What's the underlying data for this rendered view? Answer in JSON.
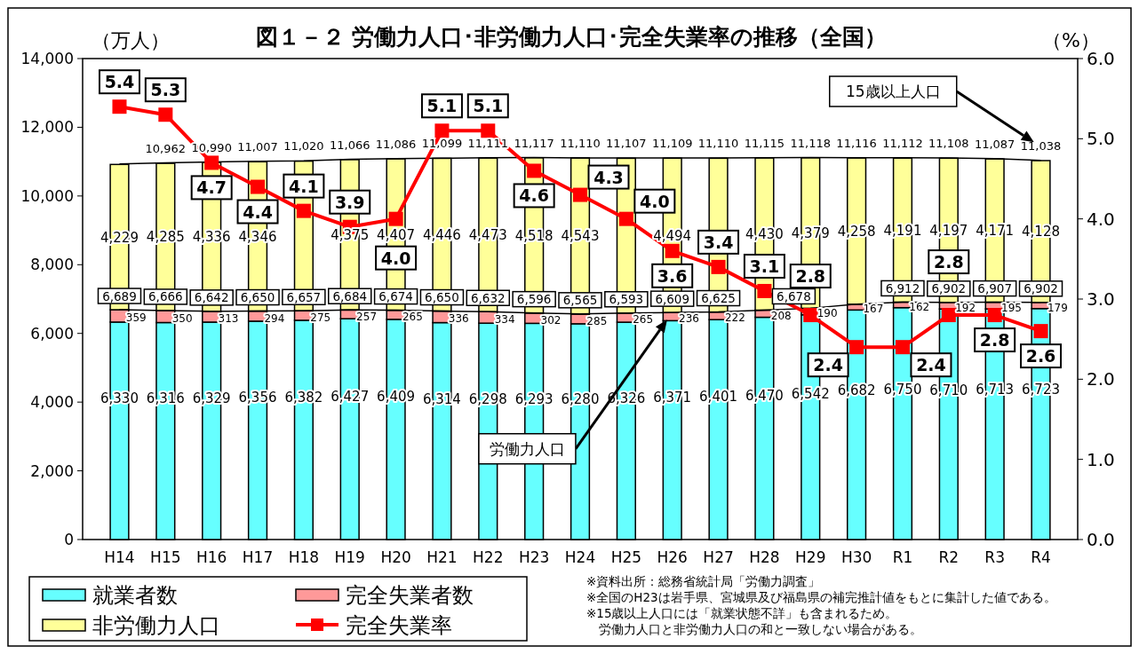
{
  "chart_data": {
    "type": "bar",
    "title": "図１－２ 労働力人口･非労働力人口･完全失業率の推移（全国）",
    "ylabel": "（万人）",
    "y2label": "（%）",
    "categories": [
      "H14",
      "H15",
      "H16",
      "H17",
      "H18",
      "H19",
      "H20",
      "H21",
      "H22",
      "H23",
      "H24",
      "H25",
      "H26",
      "H27",
      "H28",
      "H29",
      "H30",
      "R1",
      "R2",
      "R3",
      "R4"
    ],
    "stacked": true,
    "series": [
      {
        "name": "就業者数",
        "color": "#66ffff",
        "values": [
          6330,
          6316,
          6329,
          6356,
          6382,
          6427,
          6409,
          6314,
          6298,
          6293,
          6280,
          6326,
          6371,
          6401,
          6470,
          6542,
          6682,
          6750,
          6710,
          6713,
          6723
        ],
        "value_labels": [
          "6,330",
          "6,316",
          "6,329",
          "6,356",
          "6,382",
          "6,427",
          "6,409",
          "6,314",
          "6,298",
          "6,293",
          "6,280",
          "6,326",
          "6,371",
          "6,401",
          "6,470",
          "6,542",
          "6,682",
          "6,750",
          "6,710",
          "6,713",
          "6,723"
        ]
      },
      {
        "name": "完全失業者数",
        "color": "#ff9999",
        "values": [
          359,
          350,
          313,
          294,
          275,
          257,
          265,
          336,
          334,
          302,
          285,
          265,
          236,
          222,
          208,
          190,
          167,
          162,
          192,
          195,
          179
        ],
        "value_labels": [
          "359",
          "350",
          "313",
          "294",
          "275",
          "257",
          "265",
          "336",
          "334",
          "302",
          "285",
          "265",
          "236",
          "222",
          "208",
          "190",
          "167",
          "162",
          "192",
          "195",
          "179"
        ]
      },
      {
        "name": "非労働力人口",
        "color": "#ffff99",
        "values": [
          4229,
          4285,
          4336,
          4346,
          4357,
          4375,
          4407,
          4446,
          4473,
          4518,
          4543,
          4506,
          4494,
          4475,
          4430,
          4379,
          4258,
          4191,
          4197,
          4171,
          4128
        ],
        "value_labels": [
          "4,229",
          "4,285",
          "4,336",
          "4,346",
          null,
          "4,375",
          "4,407",
          "4,446",
          "4,473",
          "4,518",
          "4,543",
          null,
          "4,494",
          null,
          "4,430",
          "4,379",
          "4,258",
          "4,191",
          "4,197",
          "4,171",
          "4,128"
        ]
      },
      {
        "name": "労働力人口",
        "type": "line",
        "color": "#000000",
        "marker": "none",
        "values": [
          6689,
          6666,
          6642,
          6650,
          6657,
          6684,
          6674,
          6650,
          6632,
          6596,
          6565,
          6593,
          6609,
          6625,
          6678,
          6732,
          6849,
          6912,
          6902,
          6907,
          6902
        ],
        "value_labels": [
          "6,689",
          "6,666",
          "6,642",
          "6,650",
          "6,657",
          "6,684",
          "6,674",
          "6,650",
          "6,632",
          "6,596",
          "6,565",
          "6,593",
          "6,609",
          "6,625",
          "6,678",
          null,
          null,
          "6,912",
          "6,902",
          "6,907",
          "6,902"
        ]
      },
      {
        "name": "15歳以上人口",
        "type": "line",
        "color": "#000000",
        "marker": "none",
        "values": [
          10931,
          10962,
          10990,
          11007,
          11020,
          11066,
          11086,
          11099,
          11111,
          11117,
          11110,
          11107,
          11109,
          11110,
          11115,
          11118,
          11116,
          11112,
          11108,
          11087,
          11038
        ],
        "value_labels": [
          null,
          "10,962",
          "10,990",
          "11,007",
          "11,020",
          "11,066",
          "11,086",
          "11,099",
          "11,111",
          "11,117",
          "11,110",
          "11,107",
          "11,109",
          "11,110",
          "11,115",
          "11,118",
          "11,116",
          "11,112",
          "11,108",
          "11,087",
          "11,038"
        ]
      },
      {
        "name": "完全失業率",
        "type": "line",
        "color": "#ff0000",
        "marker": "square",
        "axis": "y2",
        "values": [
          5.4,
          5.3,
          4.7,
          4.4,
          4.1,
          3.9,
          4.0,
          5.1,
          5.1,
          4.6,
          4.3,
          4.0,
          3.6,
          3.4,
          3.1,
          2.8,
          2.4,
          2.4,
          2.8,
          2.8,
          2.6
        ],
        "value_labels": [
          "5.4",
          "5.3",
          "4.7",
          "4.4",
          "4.1",
          "3.9",
          "4.0",
          "5.1",
          "5.1",
          "4.6",
          "4.3",
          "4.0",
          "3.6",
          "3.4",
          "3.1",
          "2.8",
          "2.4",
          "2.4",
          "2.8",
          "2.8",
          "2.6"
        ]
      }
    ],
    "ylim": [
      0,
      14000
    ],
    "yticks": [
      0,
      {
        "value": 2000,
        "label": "2,000"
      },
      {
        "value": 4000,
        "label": "4,000"
      },
      {
        "value": 6000,
        "label": "6,000"
      },
      {
        "value": 8000,
        "label": "8,000"
      },
      {
        "value": 10000,
        "label": "10,000"
      },
      {
        "value": 12000,
        "label": "12,000"
      },
      {
        "value": 14000,
        "label": "14,000"
      }
    ],
    "y2lim": [
      0,
      6
    ],
    "y2ticks": [
      {
        "value": 0,
        "label": "0.0"
      },
      {
        "value": 1,
        "label": "1.0"
      },
      {
        "value": 2,
        "label": "2.0"
      },
      {
        "value": 3,
        "label": "3.0"
      },
      {
        "value": 4,
        "label": "4.0"
      },
      {
        "value": 5,
        "label": "5.0"
      },
      {
        "value": 6,
        "label": "6.0"
      }
    ],
    "legend": "bottom left",
    "annotations": [
      "※資料出所：総務省統計局「労働力調査」",
      "※全国のH23は岩手県、宮城県及び福島県の補完推計値をもとに集計した値である。",
      "※15歳以上人口には「就業状態不詳」も含まれるため。",
      "　労働力人口と非労働力人口の和と一致しない場合がある。"
    ]
  }
}
